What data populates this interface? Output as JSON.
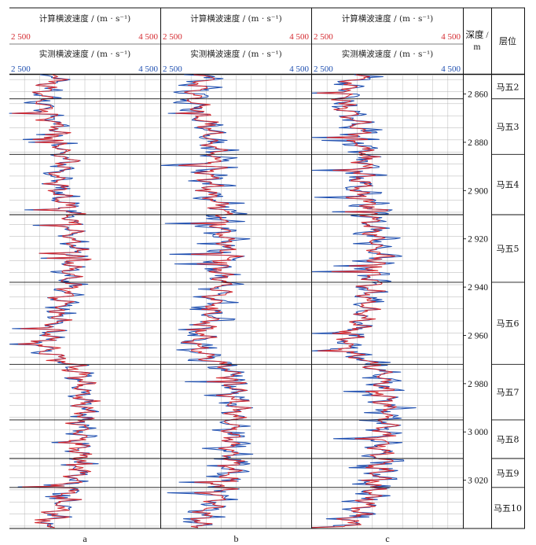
{
  "chart_data": {
    "type": "line",
    "panels": [
      {
        "label": "a",
        "header_calc": "计算横波速度 / (m · s⁻¹)",
        "header_meas": "实测横波速度 / (m · s⁻¹)"
      },
      {
        "label": "b",
        "header_calc": "计算横波速度 / (m · s⁻¹)",
        "header_meas": "实测横波速度 / (m · s⁻¹)"
      },
      {
        "label": "c",
        "header_calc": "计算横波速度 / (m · s⁻¹)",
        "header_meas": "实测横波速度 / (m · s⁻¹)"
      }
    ],
    "x_range": [
      2500,
      4500
    ],
    "x_min_label": "2 500",
    "x_max_label": "4 500",
    "depth_range": [
      2852,
      3040
    ],
    "depth_header": "深度 /",
    "depth_unit": "m",
    "depth_ticks": [
      {
        "value": 2860,
        "label": "2 860"
      },
      {
        "value": 2880,
        "label": "2 880"
      },
      {
        "value": 2900,
        "label": "2 900"
      },
      {
        "value": 2920,
        "label": "2 920"
      },
      {
        "value": 2940,
        "label": "2 940"
      },
      {
        "value": 2960,
        "label": "2 960"
      },
      {
        "value": 2980,
        "label": "2 980"
      },
      {
        "value": 3000,
        "label": "3 000"
      },
      {
        "value": 3020,
        "label": "3 020"
      }
    ],
    "layer_header": "层位",
    "layers": [
      {
        "name": "马五2",
        "top": 2852,
        "bottom": 2862
      },
      {
        "name": "马五3",
        "top": 2862,
        "bottom": 2885
      },
      {
        "name": "马五4",
        "top": 2885,
        "bottom": 2910
      },
      {
        "name": "马五5",
        "top": 2910,
        "bottom": 2938
      },
      {
        "name": "马五6",
        "top": 2938,
        "bottom": 2972
      },
      {
        "name": "马五7",
        "top": 2972,
        "bottom": 2995
      },
      {
        "name": "马五8",
        "top": 2995,
        "bottom": 3011
      },
      {
        "name": "马五9",
        "top": 3011,
        "bottom": 3023
      },
      {
        "name": "马五10",
        "top": 3023,
        "bottom": 3040
      }
    ],
    "series": [
      {
        "name": "计算横波速度",
        "color": "#d42a30"
      },
      {
        "name": "实测横波速度",
        "color": "#1f4fb0"
      }
    ],
    "profile_depths": [
      2852,
      2856,
      2860,
      2864,
      2868,
      2872,
      2876,
      2880,
      2884,
      2888,
      2892,
      2896,
      2900,
      2904,
      2908,
      2912,
      2916,
      2920,
      2924,
      2928,
      2932,
      2936,
      2940,
      2944,
      2948,
      2952,
      2956,
      2960,
      2964,
      2968,
      2972,
      2976,
      2980,
      2984,
      2988,
      2992,
      2996,
      3000,
      3004,
      3008,
      3012,
      3016,
      3020,
      3024,
      3028,
      3032,
      3036,
      3040
    ],
    "profile_velocity": [
      3150,
      3050,
      2950,
      2950,
      3000,
      3100,
      3150,
      3150,
      3200,
      3250,
      3150,
      3150,
      3150,
      3200,
      3350,
      3300,
      3300,
      3350,
      3350,
      3400,
      3300,
      3300,
      3300,
      3250,
      3200,
      3200,
      3100,
      3050,
      2950,
      3050,
      3300,
      3450,
      3450,
      3450,
      3500,
      3500,
      3450,
      3450,
      3450,
      3400,
      3450,
      3450,
      3350,
      3300,
      3250,
      3150,
      3050,
      2950
    ]
  }
}
